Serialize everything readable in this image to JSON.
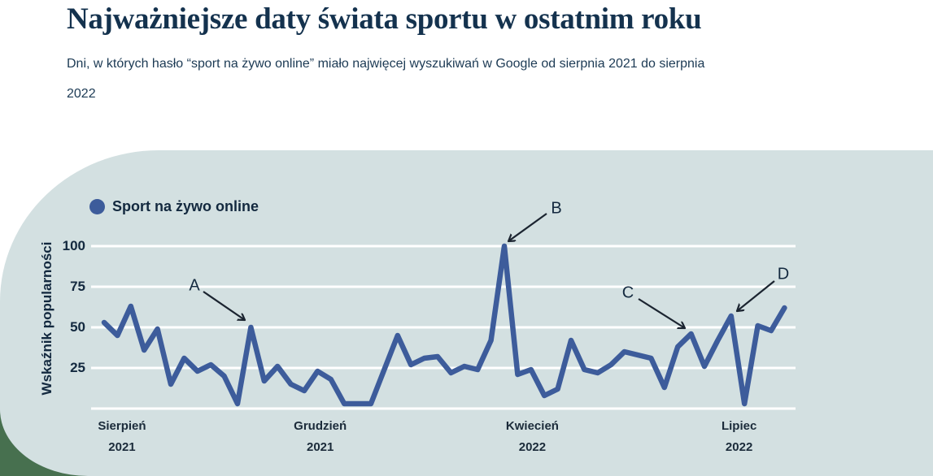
{
  "header": {
    "title": "Najważniejsze daty świata sportu w ostatnim roku",
    "subtitle": "Dni, w których hasło “sport na żywo online” miało najwięcej wyszukiwań w Google od sierpnia 2021 do sierpnia 2022"
  },
  "chart_data": {
    "type": "line",
    "series_name": "Sport na żywo online",
    "ylabel": "Wskaźnik popularności",
    "ylim": [
      0,
      100
    ],
    "yticks": [
      100,
      75,
      50,
      25
    ],
    "grid": true,
    "legend_position": "top-left",
    "x_unit": "week (sierpień 2021 – sierpień 2022)",
    "x_axis_labels": [
      {
        "month": "Sierpień",
        "year": "2021"
      },
      {
        "month": "Grudzień",
        "year": "2021"
      },
      {
        "month": "Kwiecień",
        "year": "2022"
      },
      {
        "month": "Lipiec",
        "year": "2022"
      }
    ],
    "values": [
      53,
      45,
      63,
      36,
      49,
      15,
      31,
      23,
      27,
      20,
      3,
      50,
      17,
      26,
      15,
      11,
      23,
      18,
      3,
      3,
      3,
      24,
      45,
      27,
      31,
      32,
      22,
      26,
      24,
      42,
      100,
      21,
      24,
      8,
      12,
      42,
      24,
      22,
      27,
      35,
      33,
      31,
      13,
      38,
      46,
      26,
      42,
      57,
      3,
      51,
      48,
      62
    ],
    "annotations": [
      {
        "label": "A",
        "point_index": 11,
        "value": 50
      },
      {
        "label": "B",
        "point_index": 30,
        "value": 100
      },
      {
        "label": "C",
        "point_index": 44,
        "value": 46
      },
      {
        "label": "D",
        "point_index": 47,
        "value": 57
      }
    ]
  },
  "colors": {
    "line": "#3d5c9b",
    "panel": "#d3e0e1",
    "green_shape": "#47704f",
    "grid": "#ffffff",
    "text": "#13293f",
    "title_text": "#14324e",
    "arrow": "#1b2430"
  }
}
